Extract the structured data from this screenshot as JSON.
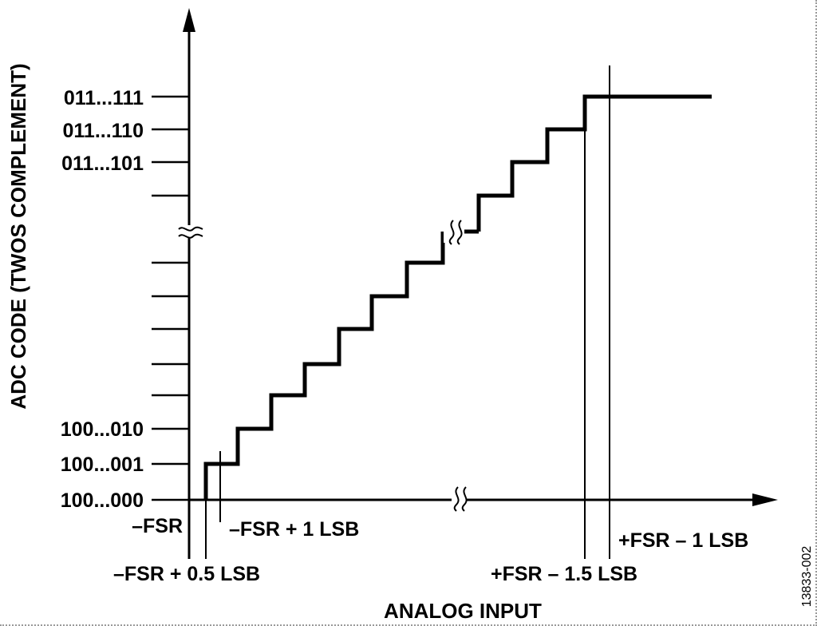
{
  "diagram": {
    "y_axis_title": "ADC CODE (TWOS COMPLEMENT)",
    "x_axis_title": "ANALOG INPUT",
    "y_codes": {
      "top": "011...111",
      "second": "011...110",
      "third": "011...101",
      "low3": "100...010",
      "low2": "100...001",
      "low1": "100...000"
    },
    "x_markers": {
      "neg_fsr": "–FSR",
      "neg_fsr_half": "–FSR + 0.5 LSB",
      "neg_fsr_one": "–FSR + 1 LSB",
      "pos_fsr_onehalf": "+FSR – 1.5 LSB",
      "pos_fsr_one": "+FSR – 1 LSB"
    },
    "figure_id": "13833-002"
  }
}
